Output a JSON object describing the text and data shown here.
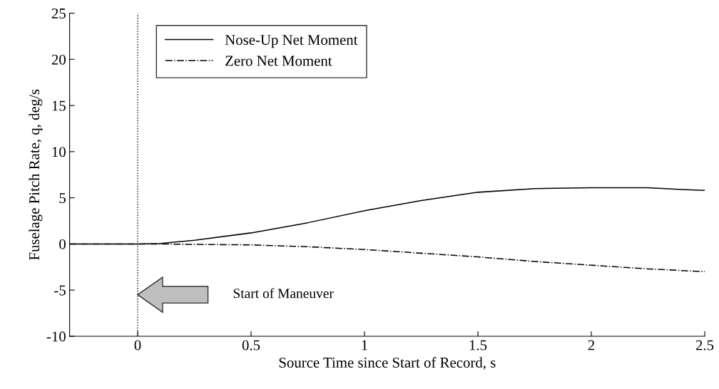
{
  "chart_data": {
    "type": "line",
    "xlabel": "Source Time since Start of Record, s",
    "ylabel": "Fuselage Pitch Rate, q, deg/s",
    "xlim": [
      -0.3,
      2.5
    ],
    "xticks": [
      0,
      0.5,
      1,
      1.5,
      2,
      2.5
    ],
    "ylim": [
      -10,
      25
    ],
    "yticks": [
      -10,
      -5,
      0,
      5,
      10,
      15,
      20,
      25
    ],
    "grid": false,
    "legend": "top left",
    "marker": "none",
    "series": [
      {
        "name": "Nose-Up Net Moment",
        "color": "#000000",
        "line_style": "solid",
        "x": [
          -0.3,
          0,
          0.1,
          0.25,
          0.5,
          0.75,
          1.0,
          1.25,
          1.5,
          1.75,
          2.0,
          2.25,
          2.4,
          2.5
        ],
        "values": [
          0,
          0,
          0.05,
          0.4,
          1.2,
          2.3,
          3.6,
          4.7,
          5.6,
          6.0,
          6.1,
          6.1,
          5.9,
          5.8
        ]
      },
      {
        "name": "Zero Net Moment",
        "color": "#000000",
        "line_style": "dashdot",
        "x": [
          -0.3,
          0,
          0.1,
          0.25,
          0.5,
          0.75,
          1.0,
          1.25,
          1.5,
          1.75,
          2.0,
          2.25,
          2.5
        ],
        "values": [
          0,
          0,
          0,
          -0.05,
          -0.1,
          -0.3,
          -0.6,
          -1.0,
          -1.4,
          -1.9,
          -2.3,
          -2.7,
          -3.0
        ]
      }
    ],
    "ref_lines": [
      {
        "axis": "x",
        "value": 0,
        "color": "#000000",
        "line_style": "dotted"
      }
    ],
    "annotations": [
      "Start of Maneuver"
    ]
  }
}
